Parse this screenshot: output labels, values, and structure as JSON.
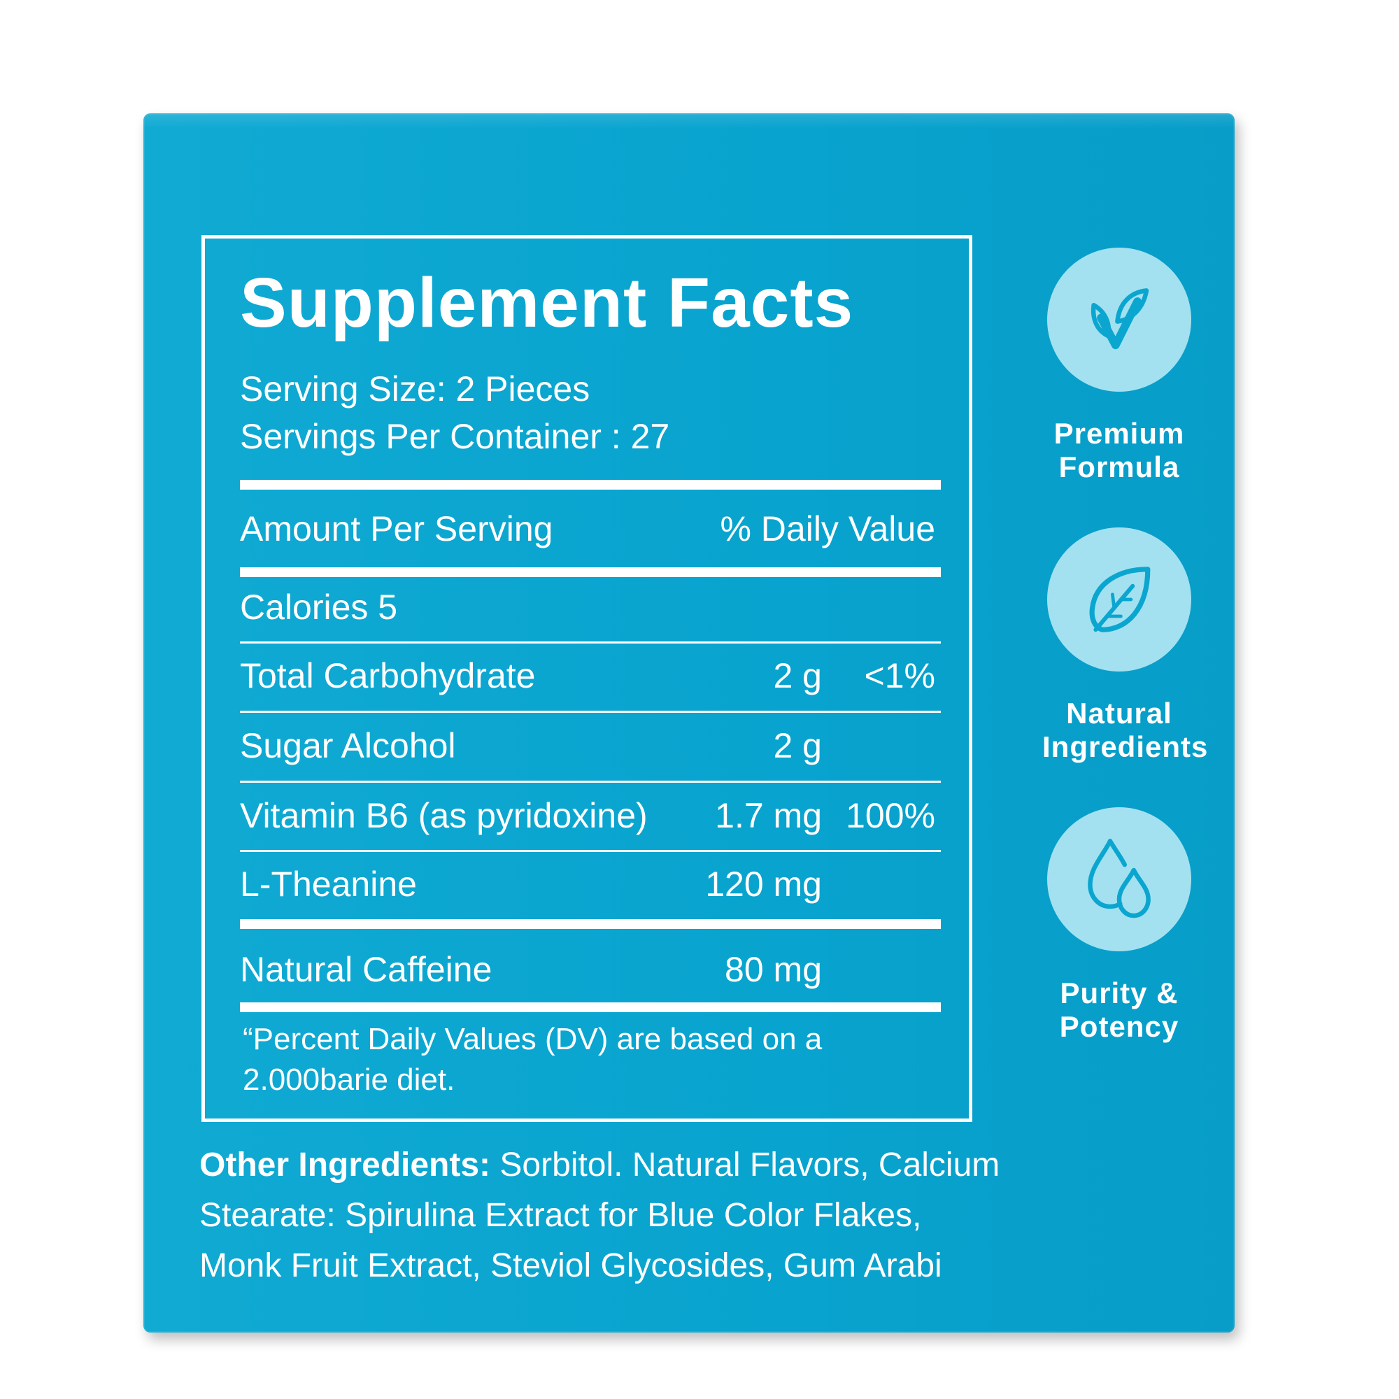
{
  "colors": {
    "box": "#0ba6d0",
    "badge_fill": "#a3e1f1",
    "icon_stroke": "#0ba6d0",
    "text": "#ffffff"
  },
  "facts": {
    "title": "Supplement Facts",
    "serving_size": "Serving Size: 2 Pieces",
    "servings_per_container": "Servings Per Container : 27",
    "header_amount": "Amount Per Serving",
    "header_dv": "% Daily Value",
    "calories": "Calories 5",
    "rows": [
      {
        "name": "Total Carbohydrate",
        "amount": "2 g",
        "dv": "<1%"
      },
      {
        "name": "Sugar Alcohol",
        "amount": "2 g",
        "dv": ""
      },
      {
        "name": "Vitamin B6 (as pyridoxine)",
        "amount": "1.7 mg",
        "dv": "100%"
      },
      {
        "name": "L-Theanine",
        "amount": "120 mg",
        "dv": ""
      },
      {
        "name": "Natural Caffeine",
        "amount": "80 mg",
        "dv": ""
      }
    ],
    "footnote": "“Percent Daily Values (DV) are based on a 2.000barie diet."
  },
  "other_ingredients": {
    "label": "Other Ingredients:",
    "text": " Sorbitol. Natural Flavors, Calcium Stearate: Spirulina Extract for Blue Color Flakes, Monk Fruit Extract, Steviol Glycosides, Gum Arabi"
  },
  "badges": [
    {
      "icon": "leaves-check-icon",
      "line1": "Premium",
      "line2": "Formula"
    },
    {
      "icon": "leaf-icon",
      "line1": "Natural",
      "line2": "Ingredients"
    },
    {
      "icon": "droplets-icon",
      "line1": "Purity &",
      "line2": "Potency"
    }
  ]
}
